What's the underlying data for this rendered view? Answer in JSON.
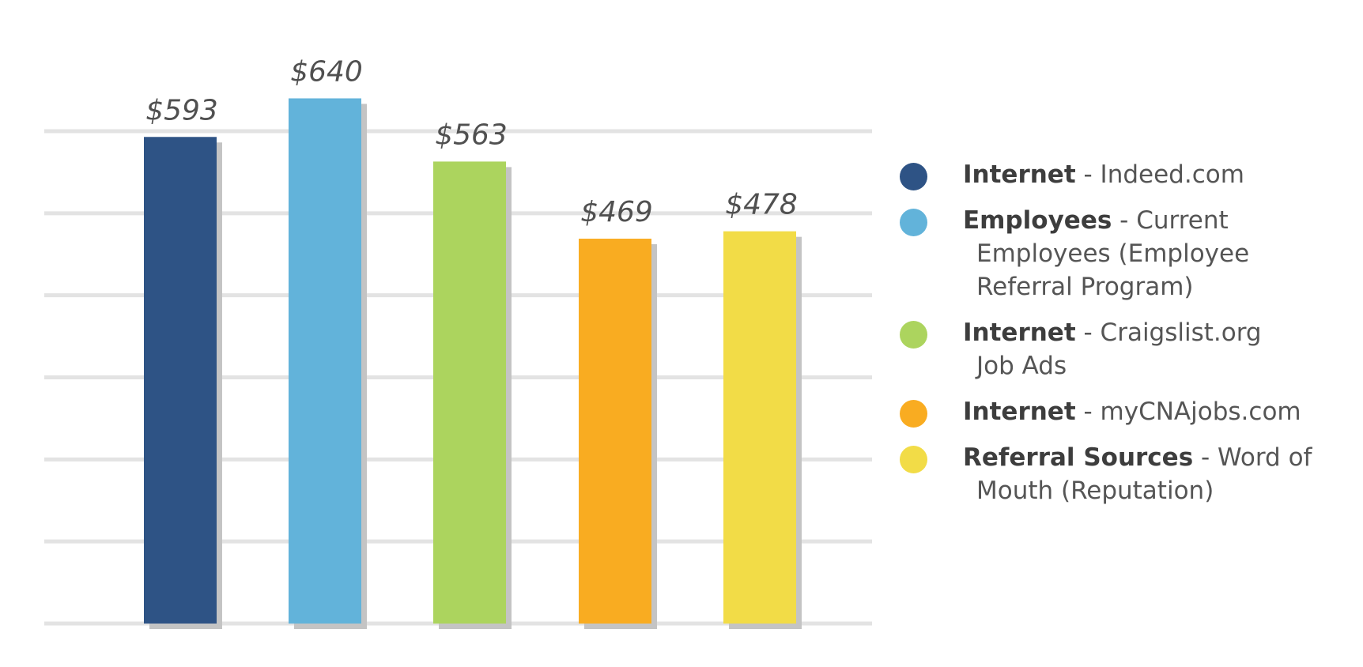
{
  "chart_data": {
    "type": "bar",
    "categories": [
      "Internet - Indeed.com",
      "Employees - Current Employees (Employee Referral Program)",
      "Internet - Craigslist.org Job Ads",
      "Internet - myCNAjobs.com",
      "Referral Sources - Word of Mouth (Reputation)"
    ],
    "values": [
      593,
      640,
      563,
      469,
      478
    ],
    "data_labels": [
      "$593",
      "$640",
      "$563",
      "$469",
      "$478"
    ],
    "colors": [
      "#2e5385",
      "#62b3da",
      "#acd45e",
      "#f9ac21",
      "#f2dc47"
    ],
    "ylim": [
      0,
      600
    ],
    "gridline_step": 100,
    "grid": true,
    "legend_position": "right"
  },
  "legend": [
    {
      "strong": "Internet",
      "rest": " - Indeed.com",
      "sub": "",
      "color": "#2e5385"
    },
    {
      "strong": "Employees",
      "rest": " - Current",
      "sub": "Employees (Employee Referral Program)",
      "color": "#62b3da"
    },
    {
      "strong": "Internet",
      "rest": " - Craigslist.org",
      "sub": "Job Ads",
      "color": "#acd45e"
    },
    {
      "strong": "Internet",
      "rest": " - myCNAjobs.com",
      "sub": "",
      "color": "#f9ac21"
    },
    {
      "strong": "Referral Sources",
      "rest": " - Word of",
      "sub": "Mouth (Reputation)",
      "color": "#f2dc47"
    }
  ]
}
